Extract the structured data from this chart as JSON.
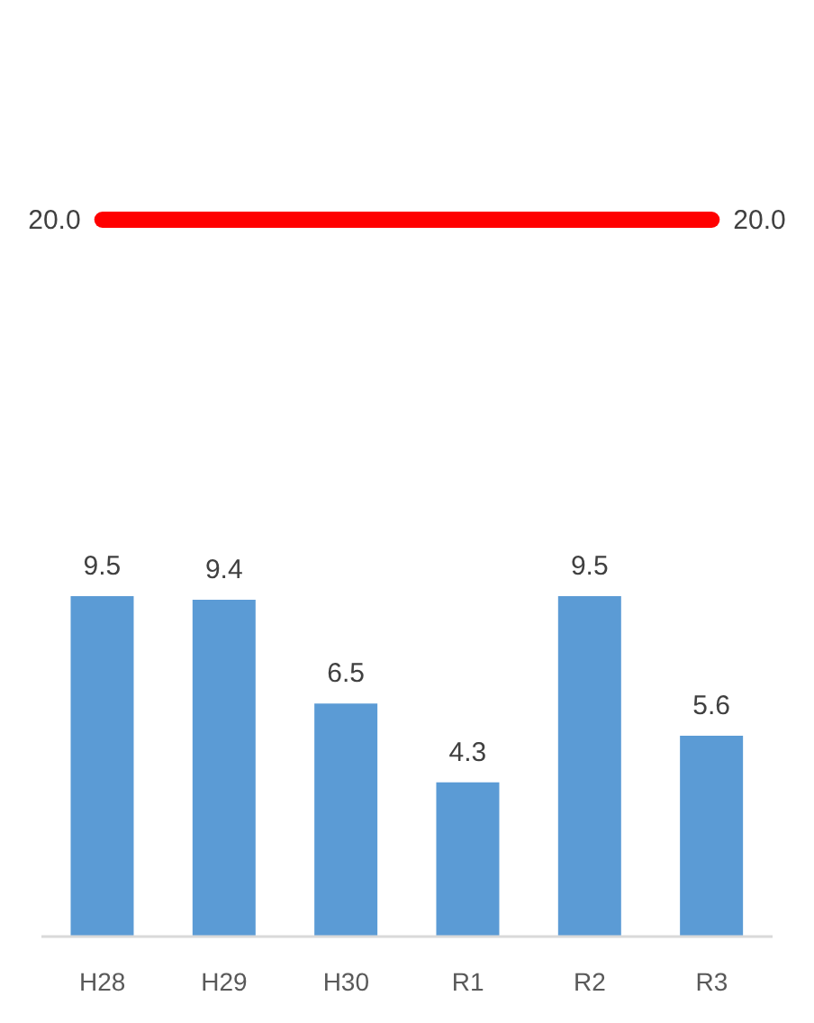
{
  "chart_data": {
    "type": "bar",
    "categories": [
      "H28",
      "H29",
      "H30",
      "R1",
      "R2",
      "R3"
    ],
    "series": [
      {
        "color": "#5b9bd5",
        "values": [
          9.5,
          9.4,
          6.5,
          4.3,
          9.5,
          5.6
        ],
        "value_labels": [
          "9.5",
          "9.4",
          "6.5",
          "4.3",
          "9.5",
          "5.6"
        ]
      },
      {
        "type": "line",
        "color": "#ff0000",
        "values": [
          20,
          20,
          20,
          20,
          20,
          20
        ],
        "value_labels": [
          "20.0",
          null,
          null,
          null,
          null,
          "20.0"
        ]
      }
    ]
  }
}
